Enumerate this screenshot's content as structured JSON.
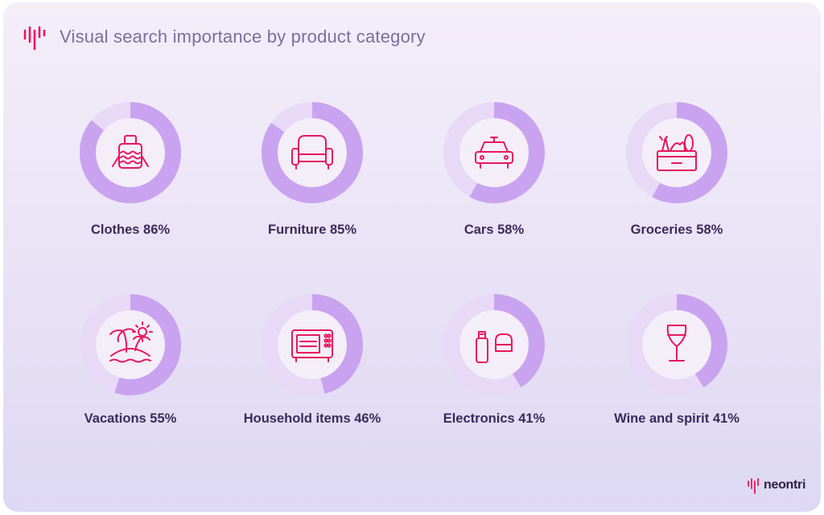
{
  "header": {
    "title": "Visual search importance by product category"
  },
  "brand": {
    "name": "neontri"
  },
  "colors": {
    "fill": "#c9a3ef",
    "track": "#e8d9f7",
    "icon": "#e8175d",
    "inner": "#f4eef9"
  },
  "chart_data": {
    "type": "pie",
    "title": "Visual search importance by product category",
    "unit": "%",
    "categories": [
      "Clothes",
      "Furniture",
      "Cars",
      "Groceries",
      "Vacations",
      "Household items",
      "Electronics",
      "Wine and spirit"
    ],
    "values": [
      86,
      85,
      58,
      58,
      55,
      46,
      41,
      41
    ],
    "labels": [
      "Clothes 86%",
      "Furniture 85%",
      "Cars 58%",
      "Groceries 58%",
      "Vacations 55%",
      "Household items 46%",
      "Electronics 41%",
      "Wine and spirit 41%"
    ],
    "icons": [
      "sweater-icon",
      "armchair-icon",
      "car-icon",
      "grocery-basket-icon",
      "island-icon",
      "microwave-icon",
      "usb-drive-icon",
      "wine-glass-icon"
    ]
  }
}
